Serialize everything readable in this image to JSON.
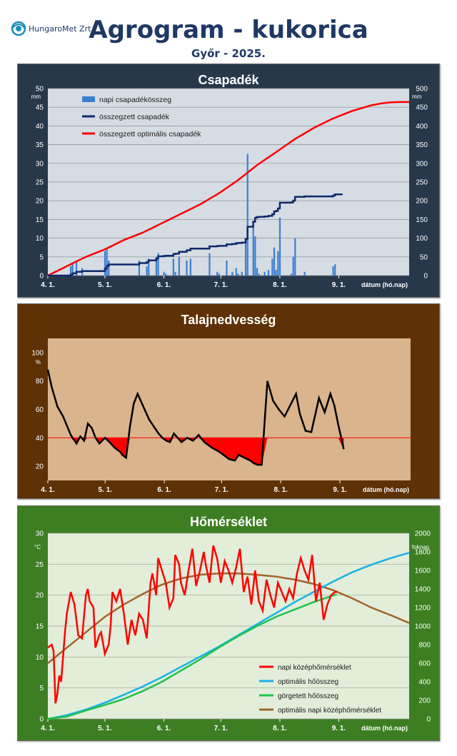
{
  "header": {
    "logo_text": "HungaroMet Zrt.",
    "title": "Agrogram - kukorica",
    "subtitle": "Győr - 2025."
  },
  "colors": {
    "title": "#1f3864",
    "precip_bg": "#27384b",
    "precip_plot": "#d6dce4",
    "precip_bars": "#3c7fd1",
    "cumulative": "#0d2a6b",
    "optimal": "#ff0000",
    "soil_bg": "#5e3106",
    "soil_plot": "#d9b48c",
    "temp_bg": "#3d7e22",
    "temp_plot": "#e2eed9",
    "daily_temp": "#ff0000",
    "opt_heat_sum": "#19b1e8",
    "rolling_heat_sum": "#21c24a",
    "opt_daily_temp": "#a0642c"
  },
  "chart_data": [
    {
      "type": "bar",
      "title": "Csapadék",
      "y_unit_left": "mm",
      "y_unit_right": "mm",
      "xlabel": "dátum (hó.nap)",
      "x_ticks": [
        "4. 1.",
        "5. 1.",
        "6. 1.",
        "7. 1.",
        "8. 1.",
        "9. 1."
      ],
      "ylim_left": [
        0,
        50
      ],
      "yticks_left": [
        "0",
        "5",
        "10",
        "15",
        "20",
        "25",
        "30",
        "35",
        "40",
        "45",
        "50"
      ],
      "ylim_right": [
        0,
        500
      ],
      "yticks_right": [
        "0",
        "50",
        "100",
        "150",
        "200",
        "250",
        "300",
        "350",
        "400",
        "450",
        "500"
      ],
      "legend": {
        "placement": "top-left",
        "items": [
          "napi csapadékösszeg",
          "összegzett csapadék",
          "összegzett optimális csapadék"
        ]
      },
      "series": [
        {
          "name": "napi csapadékösszeg",
          "kind": "bar",
          "axis": "left",
          "x_day": [
            12,
            13,
            15,
            18,
            30,
            31,
            32,
            48,
            52,
            53,
            57,
            58,
            61,
            62,
            66,
            67,
            69,
            73,
            75,
            85,
            89,
            90,
            94,
            97,
            99,
            100,
            102,
            104,
            105,
            108,
            109,
            110,
            111,
            114,
            116,
            118,
            119,
            120,
            121,
            122,
            128,
            129,
            130,
            135,
            150,
            151
          ],
          "values": [
            2.5,
            3.5,
            4,
            2,
            6.5,
            7,
            4,
            4,
            2.5,
            4.5,
            5,
            6,
            1,
            0.5,
            4.5,
            1,
            5,
            4,
            4.5,
            6,
            1,
            0.5,
            4,
            1,
            2,
            0.5,
            1,
            10,
            32.5,
            13.5,
            10.5,
            2,
            0.5,
            1,
            1.5,
            4.5,
            7.5,
            1.5,
            6.5,
            15.5,
            0.5,
            5,
            10,
            1,
            2.5,
            3
          ]
        },
        {
          "name": "összegzett csapadék",
          "kind": "line",
          "axis": "right",
          "x_day": [
            0,
            12,
            13,
            15,
            18,
            30,
            31,
            32,
            48,
            52,
            53,
            57,
            58,
            61,
            62,
            66,
            67,
            69,
            73,
            75,
            85,
            89,
            90,
            94,
            97,
            99,
            100,
            102,
            104,
            105,
            108,
            109,
            110,
            111,
            114,
            116,
            118,
            119,
            120,
            121,
            122,
            128,
            129,
            130,
            135,
            150,
            151,
            155
          ],
          "values": [
            0,
            2.5,
            6,
            10,
            12,
            18.5,
            25.5,
            29.5,
            33.5,
            36,
            40.5,
            45.5,
            51.5,
            52.5,
            53,
            57.5,
            58.5,
            63.5,
            67.5,
            72,
            78,
            79,
            79.5,
            83.5,
            84.5,
            86.5,
            87,
            88,
            98,
            130.5,
            144,
            154.5,
            156.5,
            157,
            158,
            159.5,
            164,
            171.5,
            173,
            179.5,
            195,
            195.5,
            200.5,
            210.5,
            211.5,
            214,
            217,
            217
          ]
        },
        {
          "name": "összegzett optimális csapadék",
          "kind": "line",
          "axis": "right",
          "x_day": [
            0,
            10,
            20,
            30,
            40,
            50,
            60,
            70,
            80,
            90,
            100,
            110,
            120,
            130,
            140,
            150,
            160,
            170,
            175,
            180,
            185,
            190
          ],
          "values": [
            0,
            25,
            50,
            70,
            95,
            115,
            140,
            165,
            190,
            220,
            255,
            295,
            330,
            365,
            395,
            420,
            440,
            455,
            460,
            463,
            464,
            464
          ]
        }
      ]
    },
    {
      "type": "line",
      "title": "Talajnedvesség",
      "y_unit_left": "%",
      "xlabel": "dátum (hó.nap)",
      "x_ticks": [
        "4. 1.",
        "5. 1.",
        "6. 1.",
        "7. 1.",
        "8. 1.",
        "9. 1."
      ],
      "ylim": [
        10,
        110
      ],
      "yticks": [
        "20",
        "40",
        "60",
        "80",
        "100"
      ],
      "threshold": 40,
      "series": [
        {
          "name": "",
          "x_day": [
            0,
            2,
            5,
            8,
            12,
            15,
            17,
            19,
            21,
            23,
            25,
            27,
            30,
            33,
            35,
            38,
            39,
            41,
            43,
            45,
            47,
            50,
            53,
            56,
            58,
            60,
            62,
            64,
            66,
            68,
            70,
            73,
            76,
            79,
            82,
            86,
            90,
            93,
            95,
            98,
            100,
            103,
            106,
            108,
            110,
            112,
            115,
            118,
            121,
            124,
            127,
            130,
            132,
            135,
            138,
            142,
            145,
            148,
            150,
            152,
            155
          ],
          "values": [
            88,
            76,
            62,
            55,
            42,
            36,
            41,
            38,
            50,
            47,
            40,
            36,
            40,
            36,
            33,
            30,
            28,
            26,
            48,
            64,
            71,
            62,
            53,
            47,
            43,
            40,
            38,
            37,
            43,
            40,
            37,
            40,
            38,
            42,
            37,
            33,
            30,
            27,
            25,
            24,
            28,
            26,
            24,
            22,
            21,
            21,
            80,
            66,
            60,
            55,
            63,
            71,
            57,
            45,
            44,
            68,
            58,
            71,
            63,
            50,
            32
          ]
        }
      ]
    },
    {
      "type": "line",
      "title": "Hőmérséklet",
      "y_unit_left": "°C",
      "y_unit_right": "foknap",
      "xlabel": "dátum (hó.nap)",
      "x_ticks": [
        "4. 1.",
        "5. 1.",
        "6. 1.",
        "7. 1.",
        "8. 1.",
        "9. 1."
      ],
      "ylim_left": [
        0,
        30
      ],
      "yticks_left": [
        "0",
        "5",
        "10",
        "15",
        "20",
        "25",
        "30"
      ],
      "ylim_right": [
        0,
        2000
      ],
      "yticks_right": [
        "0",
        "200",
        "400",
        "600",
        "800",
        "1000",
        "1200",
        "1400",
        "1600",
        "1800",
        "2000"
      ],
      "legend": {
        "placement": "bottom-right",
        "items": [
          "napi középhőmérséklet",
          "optimális hőösszeg",
          "görgetett hőösszeg",
          "optimális napi középhőmérséklet"
        ]
      },
      "series": [
        {
          "name": "napi középhőmérséklet",
          "axis": "left",
          "x_day": [
            0,
            2,
            3,
            4,
            5,
            6,
            7,
            9,
            10,
            12,
            14,
            16,
            18,
            20,
            21,
            22,
            24,
            25,
            27,
            28,
            30,
            32,
            33,
            34,
            36,
            38,
            40,
            42,
            44,
            46,
            48,
            50,
            52,
            54,
            55,
            57,
            58,
            60,
            62,
            64,
            66,
            67,
            69,
            70,
            72,
            74,
            76,
            78,
            80,
            82,
            83,
            85,
            87,
            89,
            91,
            93,
            95,
            97,
            99,
            101,
            103,
            105,
            107,
            109,
            111,
            113,
            115,
            117,
            119,
            121,
            123,
            125,
            127,
            129,
            131,
            133,
            135,
            137,
            139,
            141,
            143,
            145,
            147,
            149,
            151,
            152
          ],
          "values": [
            11.5,
            12,
            11,
            2.5,
            4,
            7,
            6,
            14,
            17,
            20.5,
            18.5,
            13.5,
            13,
            20,
            21,
            19,
            18,
            11.5,
            13.5,
            14,
            10.5,
            12,
            15,
            20.5,
            19,
            21,
            17,
            12,
            16,
            13.5,
            17,
            16,
            13,
            22,
            23.5,
            20,
            26,
            24,
            22,
            18,
            19.5,
            26.5,
            25,
            22,
            20,
            24,
            27.5,
            21.5,
            24,
            27,
            25,
            22,
            28,
            26,
            22,
            25.5,
            24,
            22,
            24.5,
            27.5,
            20.5,
            23,
            18.5,
            24,
            19,
            17.5,
            22.5,
            20,
            18,
            22,
            20.5,
            19,
            21,
            19.5,
            23.5,
            26,
            24,
            22.5,
            26.5,
            19,
            22,
            16,
            18.5,
            20,
            20.5,
            20.5
          ]
        },
        {
          "name": "optimális hőösszeg",
          "axis": "right",
          "x_day": [
            0,
            10,
            20,
            30,
            40,
            50,
            60,
            70,
            80,
            90,
            100,
            110,
            120,
            130,
            140,
            150,
            160,
            170,
            180,
            190
          ],
          "values": [
            0,
            40,
            100,
            175,
            260,
            350,
            450,
            560,
            670,
            780,
            900,
            1020,
            1140,
            1260,
            1370,
            1480,
            1580,
            1660,
            1730,
            1790
          ]
        },
        {
          "name": "görgetett hőösszeg",
          "axis": "right",
          "x_day": [
            0,
            10,
            20,
            30,
            40,
            50,
            60,
            70,
            80,
            90,
            100,
            110,
            120,
            130,
            140,
            150,
            152
          ],
          "values": [
            0,
            25,
            90,
            150,
            215,
            300,
            400,
            520,
            640,
            770,
            890,
            1000,
            1100,
            1180,
            1260,
            1330,
            1340
          ]
        },
        {
          "name": "optimális napi középhőmérséklet",
          "axis": "left",
          "x_day": [
            0,
            10,
            20,
            30,
            40,
            50,
            60,
            70,
            80,
            90,
            100,
            110,
            120,
            130,
            140,
            150,
            160,
            170,
            180,
            190
          ],
          "values": [
            9,
            11.5,
            14,
            16.5,
            18.5,
            20.2,
            21.7,
            22.7,
            23.3,
            23.5,
            23.5,
            23.3,
            23,
            22.5,
            21.8,
            20.8,
            19.5,
            18,
            16.8,
            15.5
          ]
        }
      ]
    }
  ]
}
